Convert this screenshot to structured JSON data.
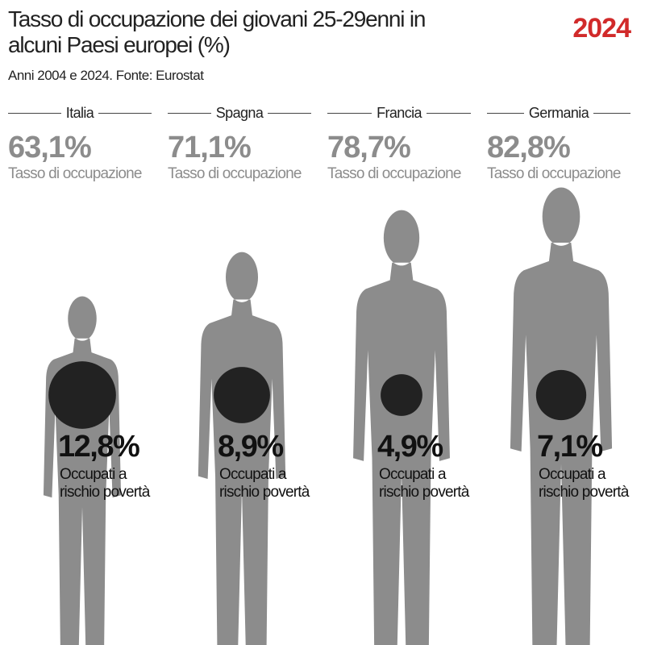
{
  "chart_data": {
    "type": "pictorial",
    "title": "Tasso di occupazione dei giovani 25-29enni in alcuni Paesi europei (%)",
    "subtitle": "Anni 2004 e 2024. Fonte: Eurostat",
    "annotation": "2024",
    "categories": [
      "Italia",
      "Spagna",
      "Francia",
      "Germania"
    ],
    "series": [
      {
        "name": "Tasso di occupazione",
        "color": "#8c8c8c",
        "values": [
          63.1,
          71.1,
          78.7,
          82.8
        ],
        "value_labels": [
          "63,1%",
          "71,1%",
          "78,7%",
          "82,8%"
        ]
      },
      {
        "name": "Occupati a rischio povertà",
        "color": "#222222",
        "values": [
          12.8,
          8.9,
          4.9,
          7.1
        ],
        "value_labels": [
          "12,8%",
          "8,9%",
          "4,9%",
          "7,1%"
        ]
      }
    ]
  }
}
